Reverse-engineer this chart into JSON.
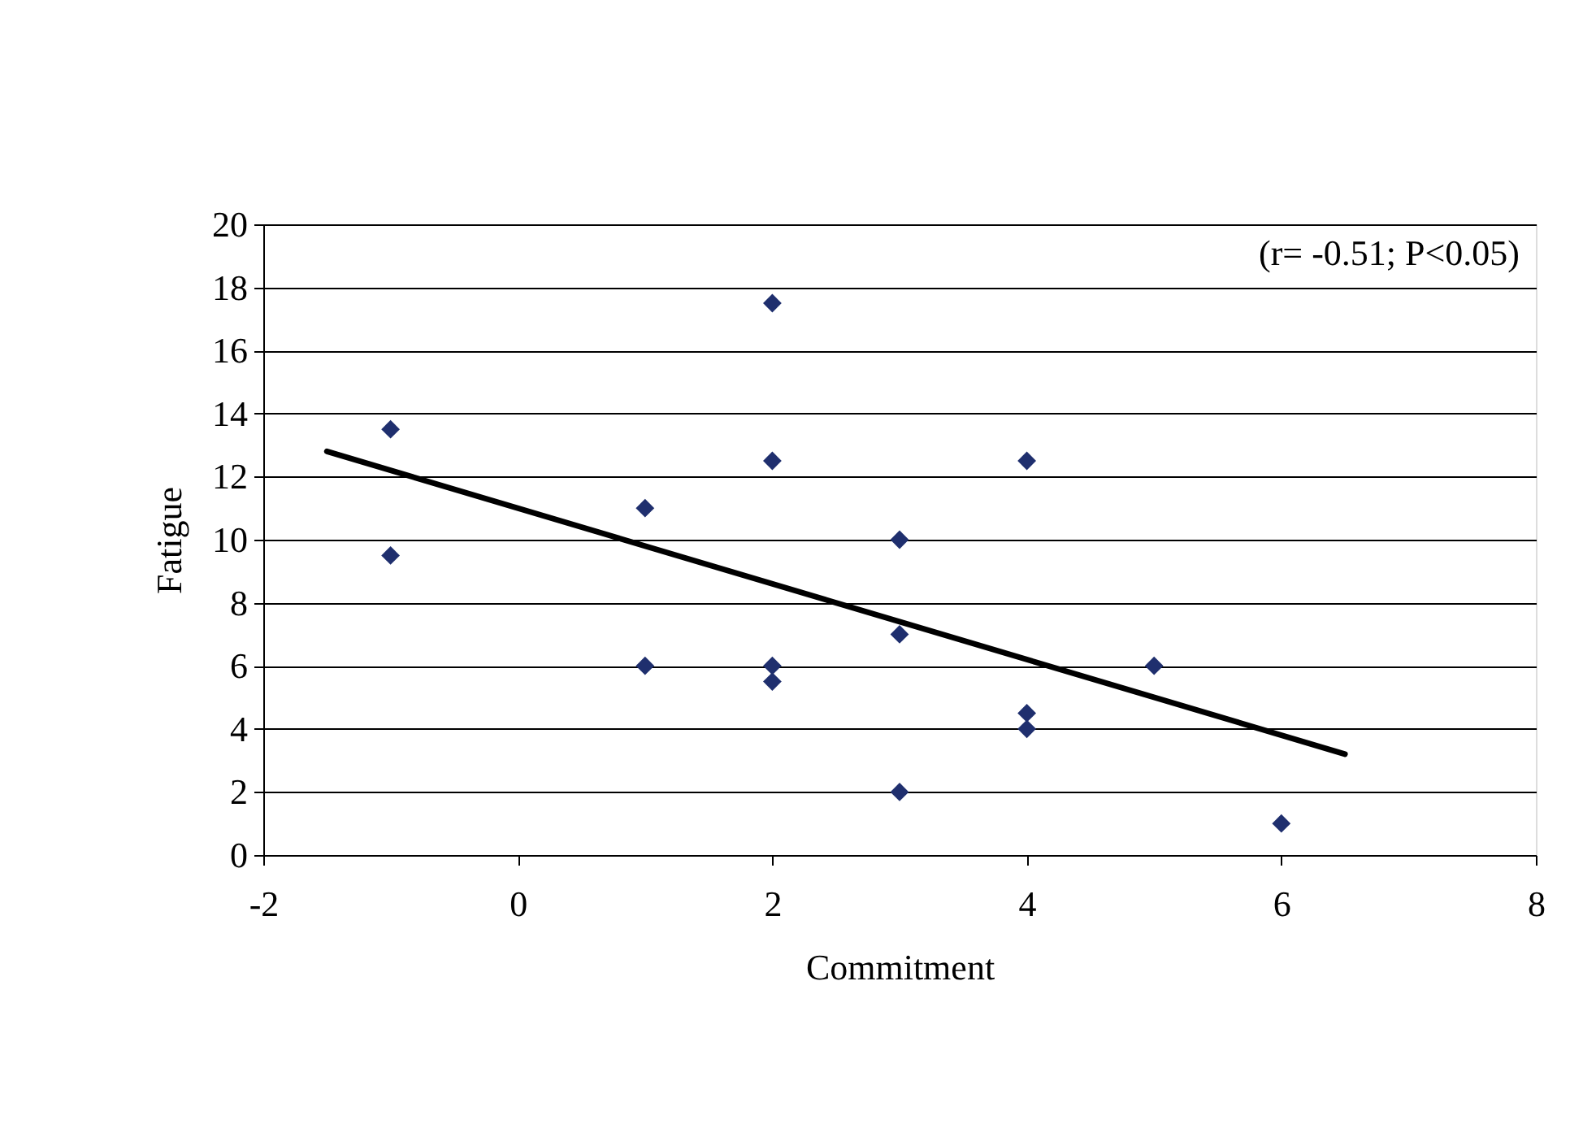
{
  "chart_data": {
    "type": "scatter",
    "xlabel": "Commitment",
    "ylabel": "Fatigue",
    "annotations": [
      "(r= -0.51; P<0.05)"
    ],
    "series": [
      {
        "color": "#1f2f6e",
        "marker": "diamond",
        "x": [
          -1,
          -1,
          1,
          1,
          2,
          2,
          2,
          2,
          3,
          3,
          3,
          4,
          4,
          4,
          5,
          6
        ],
        "values": [
          13.5,
          9.5,
          11,
          6,
          17.5,
          12.5,
          6,
          5.5,
          10,
          7,
          2,
          12.5,
          4.5,
          4,
          6,
          1
        ]
      },
      {
        "type": "line",
        "color": "#000000",
        "marker": "none",
        "line_style": "solid",
        "x": [
          -1.5,
          6.5
        ],
        "values": [
          12.8,
          3.2
        ]
      }
    ],
    "xlim": [
      -2,
      8
    ],
    "xticks": [
      -2,
      0,
      2,
      4,
      6,
      8
    ],
    "ylim": [
      0,
      20
    ],
    "yticks": [
      0,
      2,
      4,
      6,
      8,
      10,
      12,
      14,
      16,
      18,
      20
    ],
    "grid": "y"
  }
}
